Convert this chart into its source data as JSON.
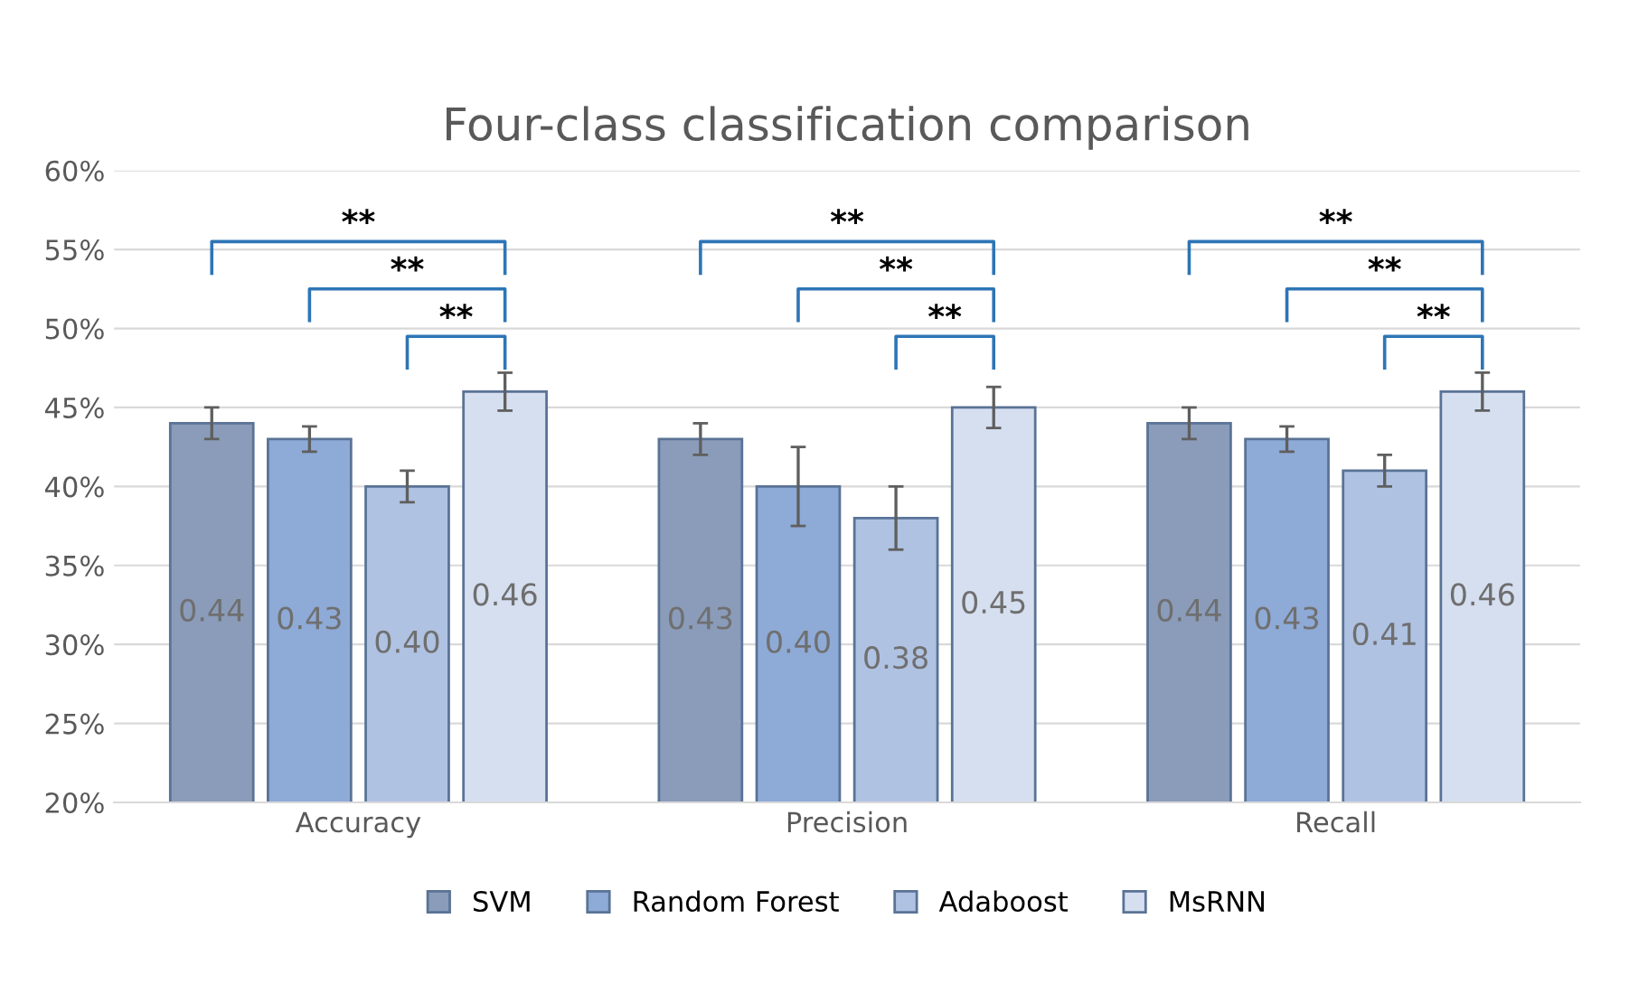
{
  "chart_data": {
    "type": "bar",
    "title": "Four-class classification comparison",
    "categories": [
      "Accuracy",
      "Precision",
      "Recall"
    ],
    "series": [
      {
        "name": "SVM",
        "color": "#8a9cb9",
        "values": [
          0.44,
          0.43,
          0.44
        ],
        "errors": [
          0.01,
          0.01,
          0.01
        ],
        "value_labels": [
          "0.44",
          "0.43",
          "0.44"
        ]
      },
      {
        "name": "Random Forest",
        "color": "#8eaad6",
        "values": [
          0.43,
          0.4,
          0.43
        ],
        "errors": [
          0.008,
          0.025,
          0.008
        ],
        "value_labels": [
          "0.43",
          "0.40",
          "0.43"
        ]
      },
      {
        "name": "Adaboost",
        "color": "#afc2e2",
        "values": [
          0.4,
          0.38,
          0.41
        ],
        "errors": [
          0.01,
          0.02,
          0.01
        ],
        "value_labels": [
          "0.40",
          "0.38",
          "0.41"
        ]
      },
      {
        "name": "MsRNN",
        "color": "#d6dff0",
        "values": [
          0.46,
          0.45,
          0.46
        ],
        "errors": [
          0.012,
          0.013,
          0.012
        ],
        "value_labels": [
          "0.46",
          "0.45",
          "0.46"
        ]
      }
    ],
    "ylim": [
      0.2,
      0.6
    ],
    "yticks": [
      {
        "value": 0.2,
        "label": "20%"
      },
      {
        "value": 0.25,
        "label": "25%"
      },
      {
        "value": 0.3,
        "label": "30%"
      },
      {
        "value": 0.35,
        "label": "35%"
      },
      {
        "value": 0.4,
        "label": "40%"
      },
      {
        "value": 0.45,
        "label": "45%"
      },
      {
        "value": 0.5,
        "label": "50%"
      },
      {
        "value": 0.55,
        "label": "55%"
      },
      {
        "value": 0.6,
        "label": "60%"
      }
    ],
    "grid": "y",
    "legend": "bottom",
    "annotations": [
      "**",
      "**",
      "**",
      "**",
      "**",
      "**",
      "**",
      "**",
      "**"
    ]
  }
}
